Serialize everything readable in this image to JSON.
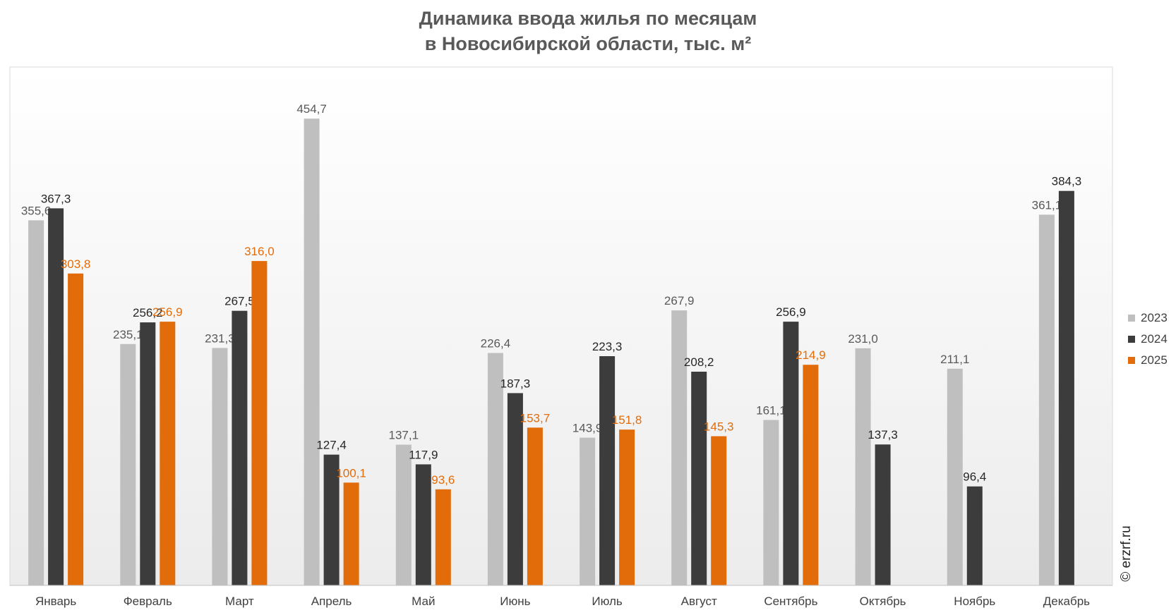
{
  "title": {
    "line1": "Динамика ввода жилья по месяцам",
    "line2": "в Новосибирской области, тыс. м²"
  },
  "watermark": "© erzrf.ru",
  "chart_data": {
    "type": "bar",
    "title": "Динамика ввода жилья по месяцам в Новосибирской области, тыс. м²",
    "categories": [
      "Январь",
      "Февраль",
      "Март",
      "Апрель",
      "Май",
      "Июнь",
      "Июль",
      "Август",
      "Сентябрь",
      "Октябрь",
      "Ноябрь",
      "Декабрь"
    ],
    "series": [
      {
        "name": "2023",
        "color": "#bfbfbf",
        "label_color": "#595959",
        "values": [
          355.6,
          235.1,
          231.3,
          454.7,
          137.1,
          226.4,
          143.9,
          267.9,
          161.1,
          231.0,
          211.1,
          361.1
        ],
        "labels": [
          "355,6",
          "235,1",
          "231,3",
          "454,7",
          "137,1",
          "226,4",
          "143,9",
          "267,9",
          "161,1",
          "231,0",
          "211,1",
          "361,1"
        ]
      },
      {
        "name": "2024",
        "color": "#3c3c3c",
        "label_color": "#262626",
        "values": [
          367.3,
          256.2,
          267.5,
          127.4,
          117.9,
          187.3,
          223.3,
          208.2,
          256.9,
          137.3,
          96.4,
          384.3
        ],
        "labels": [
          "367,3",
          "256,2",
          "267,5",
          "127,4",
          "117,9",
          "187,3",
          "223,3",
          "208,2",
          "256,9",
          "137,3",
          "96,4",
          "384,3"
        ]
      },
      {
        "name": "2025",
        "color": "#e36c0a",
        "label_color": "#e36c0a",
        "values": [
          303.8,
          256.9,
          316.0,
          100.1,
          93.6,
          153.7,
          151.8,
          145.3,
          214.9,
          null,
          null,
          null
        ],
        "labels": [
          "303,8",
          "256,9",
          "316,0",
          "100,1",
          "93,6",
          "153,7",
          "151,8",
          "145,3",
          "214,9",
          null,
          null,
          null
        ]
      }
    ],
    "ylim": [
      0,
      505
    ],
    "grid": false,
    "legend": "right"
  }
}
